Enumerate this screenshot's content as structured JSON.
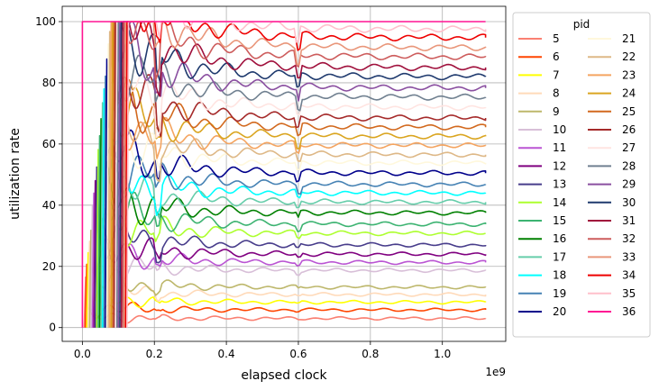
{
  "chart_data": {
    "type": "line",
    "xlabel": "elapsed clock",
    "ylabel": "utilization rate",
    "x_scale_label": "1e9",
    "xlim": [
      -0.056,
      1.176
    ],
    "ylim": [
      -4.5,
      105
    ],
    "x_ticks": [
      0.0,
      0.2,
      0.4,
      0.6,
      0.8,
      1.0
    ],
    "x_tick_labels": [
      "0.0",
      "0.2",
      "0.4",
      "0.6",
      "0.8",
      "1.0"
    ],
    "y_ticks": [
      0,
      20,
      40,
      60,
      80,
      100
    ],
    "y_tick_labels": [
      "0",
      "20",
      "40",
      "60",
      "80",
      "100"
    ],
    "grid": true,
    "legend_title": "pid",
    "legend_position": "outside-right",
    "x_end": 1.12,
    "series": [
      {
        "name": "5",
        "color": "#fa8072",
        "start": 0.005,
        "final": 3.0
      },
      {
        "name": "6",
        "color": "#ff4500",
        "start": 0.008,
        "final": 5.8
      },
      {
        "name": "7",
        "color": "#ffff00",
        "start": 0.012,
        "final": 8.3
      },
      {
        "name": "8",
        "color": "#ffdab9",
        "start": 0.016,
        "final": 10.8
      },
      {
        "name": "9",
        "color": "#bdb76b",
        "start": 0.02,
        "final": 13.2
      },
      {
        "name": "10",
        "color": "#d8bfd8",
        "start": 0.024,
        "final": 18.7
      },
      {
        "name": "11",
        "color": "#ba55d3",
        "start": 0.028,
        "final": 21.3
      },
      {
        "name": "12",
        "color": "#800080",
        "start": 0.032,
        "final": 24.0
      },
      {
        "name": "13",
        "color": "#483d8b",
        "start": 0.036,
        "final": 27.0
      },
      {
        "name": "14",
        "color": "#adff2f",
        "start": 0.04,
        "final": 30.8
      },
      {
        "name": "15",
        "color": "#3cb371",
        "start": 0.044,
        "final": 33.8
      },
      {
        "name": "16",
        "color": "#008000",
        "start": 0.048,
        "final": 37.5
      },
      {
        "name": "17",
        "color": "#66cdaa",
        "start": 0.052,
        "final": 41.0
      },
      {
        "name": "18",
        "color": "#00ffff",
        "start": 0.056,
        "final": 44.0
      },
      {
        "name": "19",
        "color": "#4682b4",
        "start": 0.06,
        "final": 46.8
      },
      {
        "name": "20",
        "color": "#00008b",
        "start": 0.064,
        "final": 50.5
      },
      {
        "name": "21",
        "color": "#fff8dc",
        "start": 0.068,
        "final": 53.8
      },
      {
        "name": "22",
        "color": "#deb887",
        "start": 0.072,
        "final": 56.5
      },
      {
        "name": "23",
        "color": "#f4a460",
        "start": 0.076,
        "final": 59.5
      },
      {
        "name": "24",
        "color": "#daa520",
        "start": 0.08,
        "final": 62.5
      },
      {
        "name": "25",
        "color": "#d2691e",
        "start": 0.084,
        "final": 65.5
      },
      {
        "name": "26",
        "color": "#a52a2a",
        "start": 0.088,
        "final": 68.5
      },
      {
        "name": "27",
        "color": "#ffe4e1",
        "start": 0.092,
        "final": 72.0
      },
      {
        "name": "28",
        "color": "#708090",
        "start": 0.096,
        "final": 75.3
      },
      {
        "name": "29",
        "color": "#8a4fa0",
        "start": 0.1,
        "final": 78.3
      },
      {
        "name": "30",
        "color": "#1f3a6e",
        "start": 0.104,
        "final": 82.0
      },
      {
        "name": "31",
        "color": "#a0103c",
        "start": 0.108,
        "final": 85.0
      },
      {
        "name": "32",
        "color": "#cd5c5c",
        "start": 0.112,
        "final": 88.5
      },
      {
        "name": "33",
        "color": "#e9967a",
        "start": 0.116,
        "final": 91.5
      },
      {
        "name": "34",
        "color": "#ee0000",
        "start": 0.12,
        "final": 94.8
      },
      {
        "name": "35",
        "color": "#ffc0cb",
        "start": 0.124,
        "final": 97.5
      },
      {
        "name": "36",
        "color": "#ff1493",
        "start": 0.0,
        "final": 100.0
      }
    ]
  }
}
